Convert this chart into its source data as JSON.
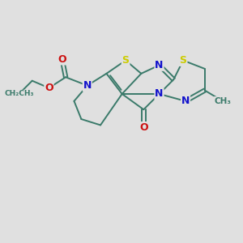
{
  "background_color": "#e0e0e0",
  "colors": {
    "bond": "#3a7a6a",
    "N": "#1111cc",
    "O": "#cc1111",
    "S": "#cccc00",
    "C": "#3a7a6a"
  },
  "figsize": [
    3.0,
    3.0
  ],
  "dpi": 100
}
